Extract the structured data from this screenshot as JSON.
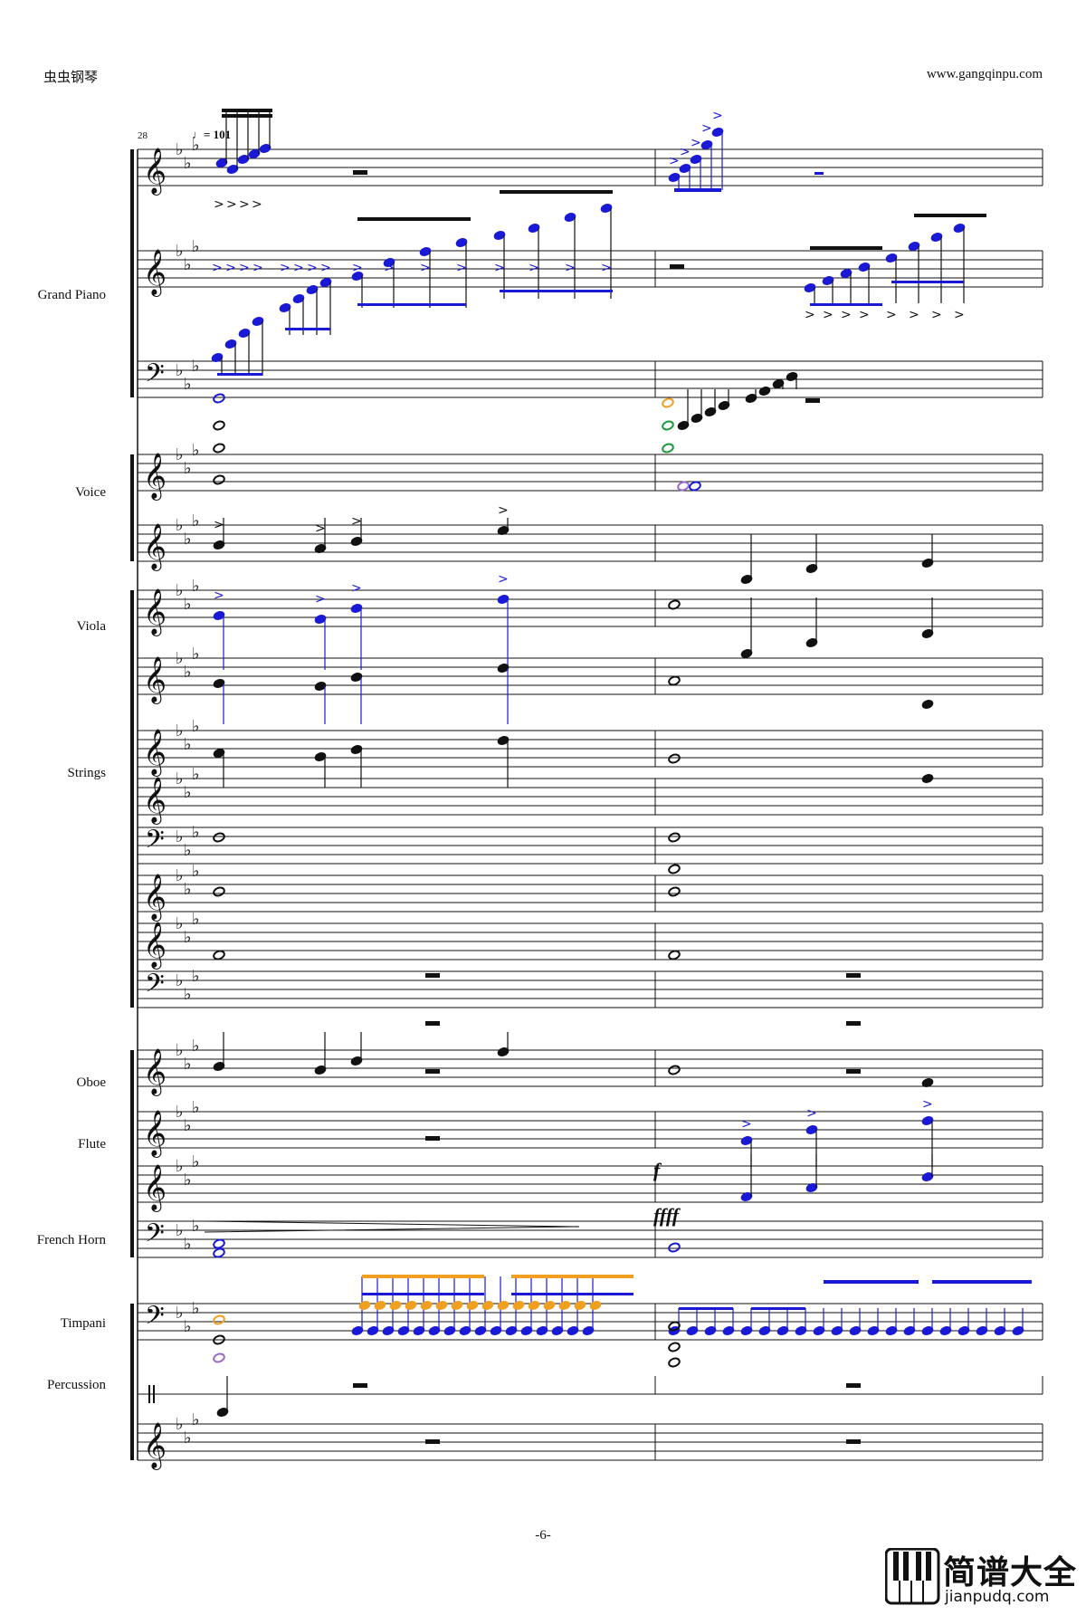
{
  "header": {
    "site_name": "虫虫钢琴",
    "site_url": "www.gangqinpu.com"
  },
  "score": {
    "measure_number": "28",
    "tempo": "♩= 101",
    "key_signature": "E-flat major (3 flats)",
    "instruments": [
      "Grand Piano",
      "Voice",
      "Viola",
      "Strings",
      "Oboe",
      "Flute",
      "French Horn",
      "Timpani",
      "Percussion"
    ],
    "dynamics": [
      "f",
      "ffff"
    ]
  },
  "footer": {
    "page_number": "-6-"
  },
  "logo": {
    "text": "简谱大全",
    "url": "jianpudq.com"
  },
  "colors": {
    "ink": "#111111",
    "blue": "#1a1ad6",
    "orange": "#f0a020",
    "green": "#1a9a3a",
    "purple": "#9a6acb"
  }
}
